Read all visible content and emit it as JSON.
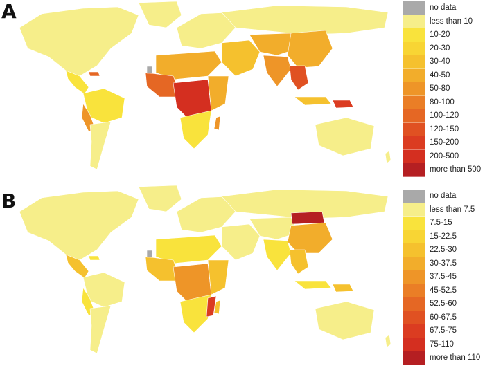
{
  "panels": [
    {
      "letter": "A",
      "legend": [
        {
          "label": "no data",
          "color": "#a9a9a9"
        },
        {
          "label": "less than 10",
          "color": "#f6ee8a"
        },
        {
          "label": "10-20",
          "color": "#f9e33c"
        },
        {
          "label": "20-30",
          "color": "#f8d534"
        },
        {
          "label": "30-40",
          "color": "#f5c12e"
        },
        {
          "label": "40-50",
          "color": "#f2ad2b"
        },
        {
          "label": "50-80",
          "color": "#ee9528"
        },
        {
          "label": "80-100",
          "color": "#ea7e26"
        },
        {
          "label": "100-120",
          "color": "#e56724"
        },
        {
          "label": "120-150",
          "color": "#e05122"
        },
        {
          "label": "150-200",
          "color": "#db3c21"
        },
        {
          "label": "200-500",
          "color": "#d42f20"
        },
        {
          "label": "more than 500",
          "color": "#b51f22"
        }
      ]
    },
    {
      "letter": "B",
      "legend": [
        {
          "label": "no data",
          "color": "#a9a9a9"
        },
        {
          "label": "less than 7.5",
          "color": "#f6ee8a"
        },
        {
          "label": "7.5-15",
          "color": "#f9e33c"
        },
        {
          "label": "15-22.5",
          "color": "#f8d534"
        },
        {
          "label": "22.5-30",
          "color": "#f5c12e"
        },
        {
          "label": "30-37.5",
          "color": "#f2ad2b"
        },
        {
          "label": "37.5-45",
          "color": "#ee9528"
        },
        {
          "label": "45-52.5",
          "color": "#ea7e26"
        },
        {
          "label": "52.5-60",
          "color": "#e56724"
        },
        {
          "label": "60-67.5",
          "color": "#e05122"
        },
        {
          "label": "67.5-75",
          "color": "#db3c21"
        },
        {
          "label": "75-110",
          "color": "#d42f20"
        },
        {
          "label": "more than 110",
          "color": "#b51f22"
        }
      ]
    }
  ]
}
